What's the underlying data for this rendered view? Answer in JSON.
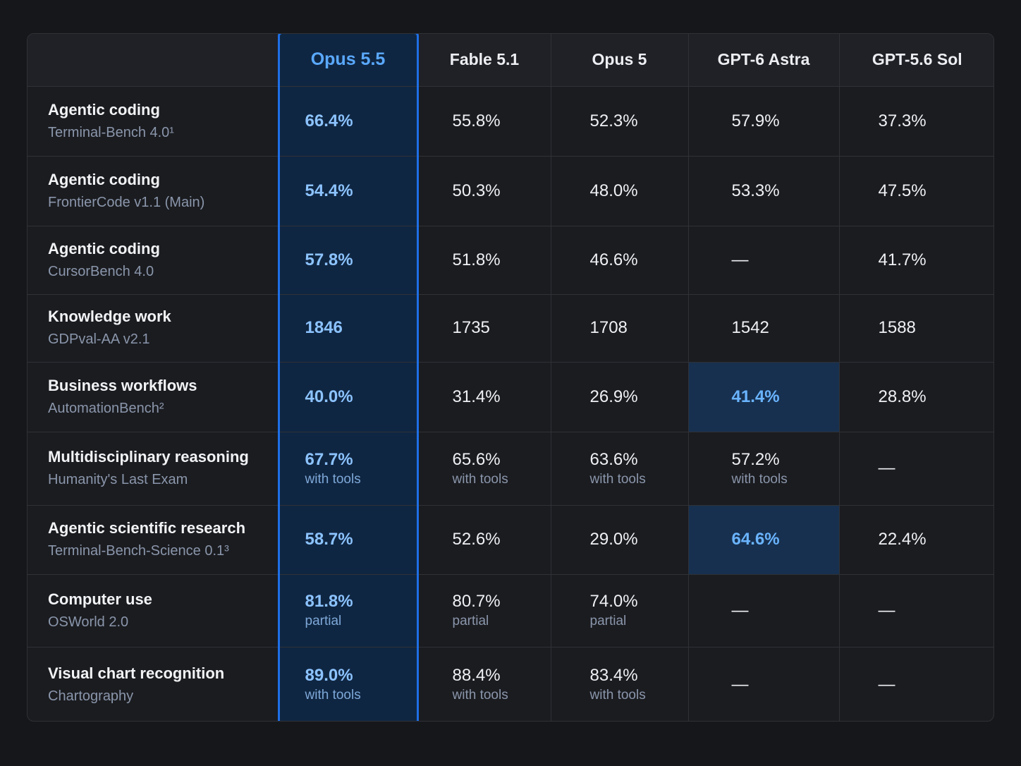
{
  "columns": [
    "Opus 5.5",
    "Fable 5.1",
    "Opus 5",
    "GPT-6 Astra",
    "GPT-5.6 Sol"
  ],
  "rows": [
    {
      "category": "Agentic coding",
      "benchmark": "Terminal-Bench 4.0¹",
      "values": [
        "66.4%",
        "55.8%",
        "52.3%",
        "57.9%",
        "37.3%"
      ],
      "notes": [
        "",
        "",
        "",
        "",
        ""
      ]
    },
    {
      "category": "Agentic coding",
      "benchmark": "FrontierCode v1.1 (Main)",
      "values": [
        "54.4%",
        "50.3%",
        "48.0%",
        "53.3%",
        "47.5%"
      ],
      "notes": [
        "",
        "",
        "",
        "",
        ""
      ]
    },
    {
      "category": "Agentic coding",
      "benchmark": "CursorBench 4.0",
      "values": [
        "57.8%",
        "51.8%",
        "46.6%",
        "—",
        "41.7%"
      ],
      "notes": [
        "",
        "",
        "",
        "",
        ""
      ]
    },
    {
      "category": "Knowledge work",
      "benchmark": "GDPval-AA v2.1",
      "values": [
        "1846",
        "1735",
        "1708",
        "1542",
        "1588"
      ],
      "notes": [
        "",
        "",
        "",
        "",
        ""
      ]
    },
    {
      "category": "Business workflows",
      "benchmark": "AutomationBench²",
      "values": [
        "40.0%",
        "31.4%",
        "26.9%",
        "41.4%",
        "28.8%"
      ],
      "notes": [
        "",
        "",
        "",
        "",
        ""
      ]
    },
    {
      "category": "Multidisciplinary reasoning",
      "benchmark": "Humanity's Last Exam",
      "values": [
        "67.7%",
        "65.6%",
        "63.6%",
        "57.2%",
        "—"
      ],
      "notes": [
        "with tools",
        "with tools",
        "with tools",
        "with tools",
        ""
      ]
    },
    {
      "category": "Agentic scientific research",
      "benchmark": "Terminal-Bench-Science 0.1³",
      "values": [
        "58.7%",
        "52.6%",
        "29.0%",
        "64.6%",
        "22.4%"
      ],
      "notes": [
        "",
        "",
        "",
        "",
        ""
      ]
    },
    {
      "category": "Computer use",
      "benchmark": "OSWorld 2.0",
      "values": [
        "81.8%",
        "80.7%",
        "74.0%",
        "—",
        "—"
      ],
      "notes": [
        "partial",
        "partial",
        "partial",
        "",
        ""
      ]
    },
    {
      "category": "Visual chart recognition",
      "benchmark": "Chartography",
      "values": [
        "89.0%",
        "88.4%",
        "83.4%",
        "—",
        "—"
      ],
      "notes": [
        "with tools",
        "with tools",
        "with tools",
        "",
        ""
      ]
    }
  ],
  "colors": {
    "background": "#16171a",
    "highlight_column": "#0f2642",
    "highlight_border": "#1f6fe5",
    "highlight_text": "#5aa9ff",
    "highlight_cell": "#17304f"
  }
}
